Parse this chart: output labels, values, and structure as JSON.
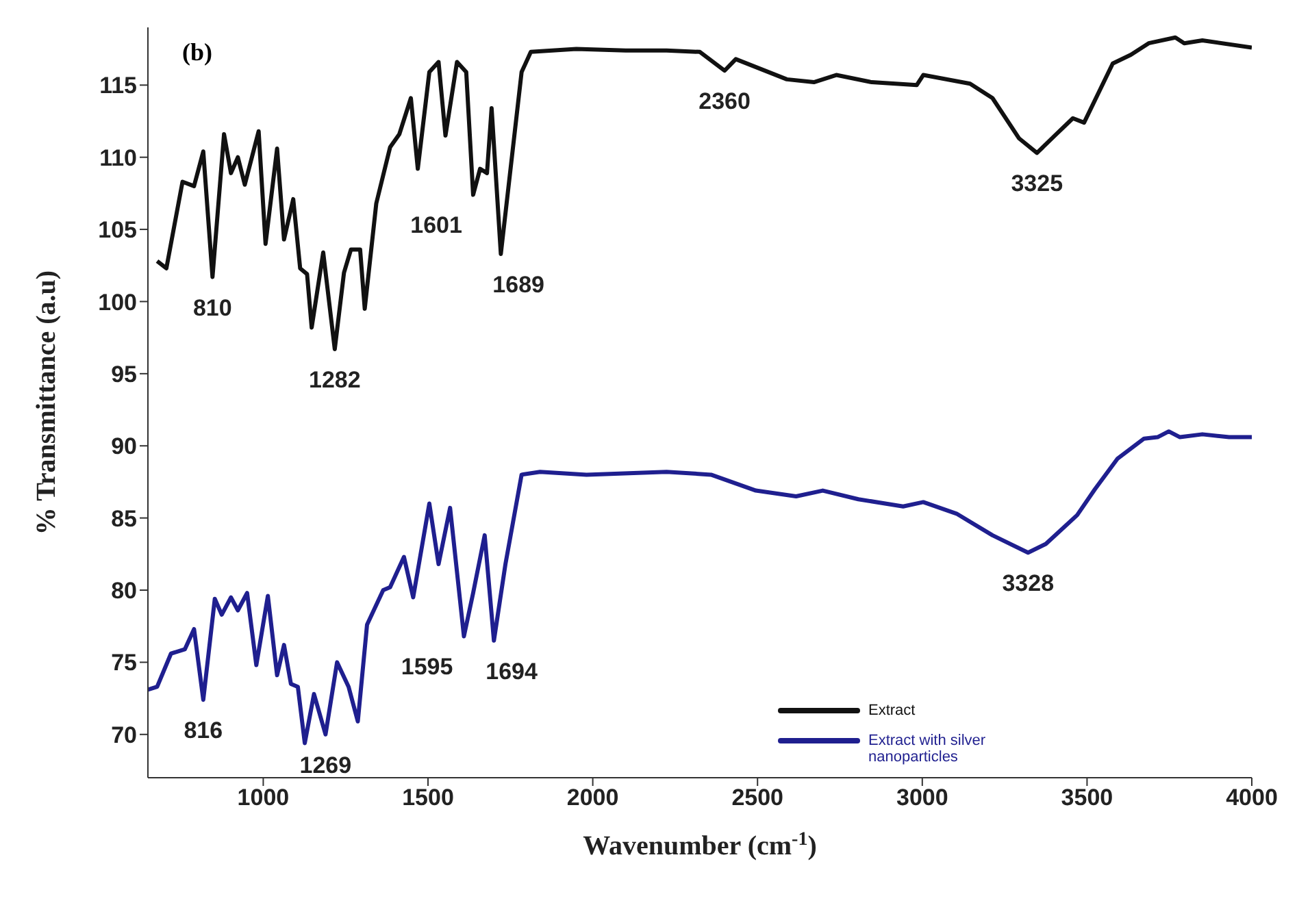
{
  "chart_data": {
    "type": "line",
    "xlabel": "Wavenumber (cm$^{-1}$)",
    "ylabel": "% Transmittance (a.u)",
    "xlim": [
      650,
      4000
    ],
    "xticks": [
      1000,
      1500,
      2000,
      2500,
      3000,
      3500,
      4000
    ],
    "ylim": [
      67,
      119
    ],
    "yticks": [
      70,
      75,
      80,
      85,
      90,
      95,
      100,
      105,
      110,
      115
    ],
    "grid": false,
    "legend": "bottom right",
    "marker": "none",
    "line_style": "solid",
    "series": [
      {
        "name": "Extract",
        "color": "#111111",
        "x": [
          678,
          706,
          755,
          790,
          818,
          846,
          881,
          902,
          923,
          944,
          986,
          1007,
          1042,
          1063,
          1091,
          1112,
          1133,
          1147,
          1182,
          1217,
          1245,
          1266,
          1294,
          1308,
          1343,
          1385,
          1413,
          1448,
          1469,
          1504,
          1532,
          1553,
          1588,
          1616,
          1637,
          1658,
          1679,
          1693,
          1721,
          1749,
          1784,
          1812,
          1950,
          2100,
          2224,
          2325,
          2400,
          2434,
          2589,
          2671,
          2739,
          2847,
          2983,
          3003,
          3145,
          3213,
          3294,
          3348,
          3402,
          3457,
          3491,
          3578,
          3633,
          3687,
          3768,
          3795,
          3850,
          4000
        ],
        "values": [
          102.8,
          102.3,
          108.3,
          108.0,
          110.4,
          101.7,
          111.6,
          108.9,
          110.0,
          108.1,
          111.8,
          104.0,
          110.6,
          104.3,
          107.1,
          102.3,
          101.9,
          98.2,
          103.4,
          96.7,
          102.0,
          103.6,
          103.6,
          99.5,
          106.8,
          110.7,
          111.6,
          114.1,
          109.2,
          115.9,
          116.6,
          111.5,
          116.6,
          115.9,
          107.4,
          109.2,
          108.9,
          113.4,
          103.3,
          108.9,
          115.9,
          117.3,
          117.5,
          117.4,
          117.4,
          117.3,
          116.0,
          116.8,
          115.4,
          115.2,
          115.7,
          115.2,
          115.0,
          115.7,
          115.1,
          114.1,
          111.3,
          110.3,
          111.5,
          112.7,
          112.4,
          116.5,
          117.1,
          117.9,
          118.3,
          117.9,
          118.1,
          117.6
        ]
      },
      {
        "name": "Extract with silver nanoparticles",
        "color": "#1f1f8f",
        "x": [
          650,
          678,
          720,
          762,
          790,
          818,
          853,
          874,
          902,
          923,
          951,
          979,
          1014,
          1042,
          1063,
          1084,
          1105,
          1126,
          1154,
          1189,
          1224,
          1259,
          1287,
          1315,
          1364,
          1385,
          1427,
          1455,
          1504,
          1532,
          1567,
          1609,
          1637,
          1672,
          1700,
          1735,
          1784,
          1840,
          1981,
          2224,
          2359,
          2495,
          2617,
          2698,
          2806,
          2942,
          3003,
          3104,
          3213,
          3321,
          3375,
          3470,
          3524,
          3592,
          3673,
          3714,
          3748,
          3782,
          3850,
          3931,
          4000
        ],
        "values": [
          73.1,
          73.3,
          75.6,
          75.9,
          77.3,
          72.4,
          79.4,
          78.3,
          79.5,
          78.6,
          79.8,
          74.8,
          79.6,
          74.1,
          76.2,
          73.5,
          73.3,
          69.4,
          72.8,
          70.0,
          75.0,
          73.3,
          70.9,
          77.6,
          80.0,
          80.2,
          82.3,
          79.5,
          86.0,
          81.8,
          85.7,
          76.8,
          79.8,
          83.8,
          76.5,
          81.8,
          88.0,
          88.2,
          88.0,
          88.2,
          88.0,
          86.9,
          86.5,
          86.9,
          86.3,
          85.8,
          86.1,
          85.3,
          83.8,
          82.6,
          83.2,
          85.2,
          87.0,
          89.1,
          90.5,
          90.6,
          91.0,
          90.6,
          90.8,
          90.6,
          90.6
        ]
      }
    ],
    "annotations": [
      "(b)",
      {
        "text": "810",
        "x": 846,
        "y": 101.7
      },
      {
        "text": "1282",
        "x": 1217,
        "y": 96.7
      },
      {
        "text": "1601",
        "x": 1637,
        "y": 107.4
      },
      {
        "text": "1689",
        "x": 1721,
        "y": 103.3
      },
      {
        "text": "2360",
        "x": 2400,
        "y": 116.0
      },
      {
        "text": "3325",
        "x": 3348,
        "y": 110.3
      },
      {
        "text": "816",
        "x": 818,
        "y": 72.4
      },
      {
        "text": "1269",
        "x": 1189,
        "y": 70.0
      },
      {
        "text": "1595",
        "x": 1609,
        "y": 76.8
      },
      {
        "text": "1694",
        "x": 1700,
        "y": 76.5
      },
      {
        "text": "3328",
        "x": 3321,
        "y": 82.6
      }
    ]
  }
}
